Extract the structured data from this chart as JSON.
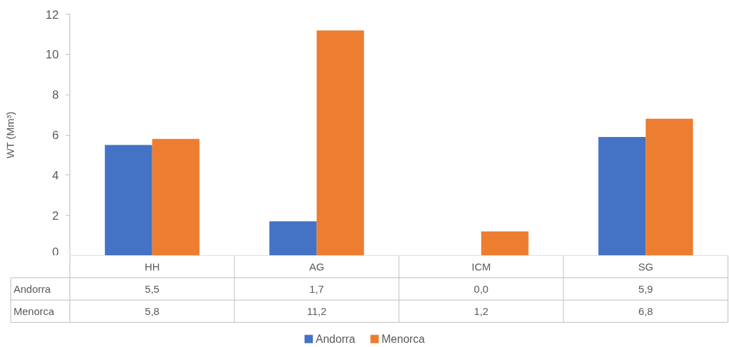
{
  "chart_data": {
    "type": "bar",
    "ylabel": "WT (Mm³)",
    "categories": [
      "HH",
      "AG",
      "ICM",
      "SG"
    ],
    "series": [
      {
        "name": "Andorra",
        "color": "#4472c4",
        "values": [
          5.5,
          1.7,
          0.0,
          5.9
        ],
        "value_labels": [
          "5,5",
          "1,7",
          "0,0",
          "5,9"
        ]
      },
      {
        "name": "Menorca",
        "color": "#ed7d31",
        "values": [
          5.8,
          11.2,
          1.2,
          6.8
        ],
        "value_labels": [
          "5,8",
          "11,2",
          "1,2",
          "6,8"
        ]
      }
    ],
    "ylim": [
      0,
      12
    ],
    "yticks": [
      0,
      2,
      4,
      6,
      8,
      10,
      12
    ],
    "grid": false,
    "legend": "bottom"
  }
}
